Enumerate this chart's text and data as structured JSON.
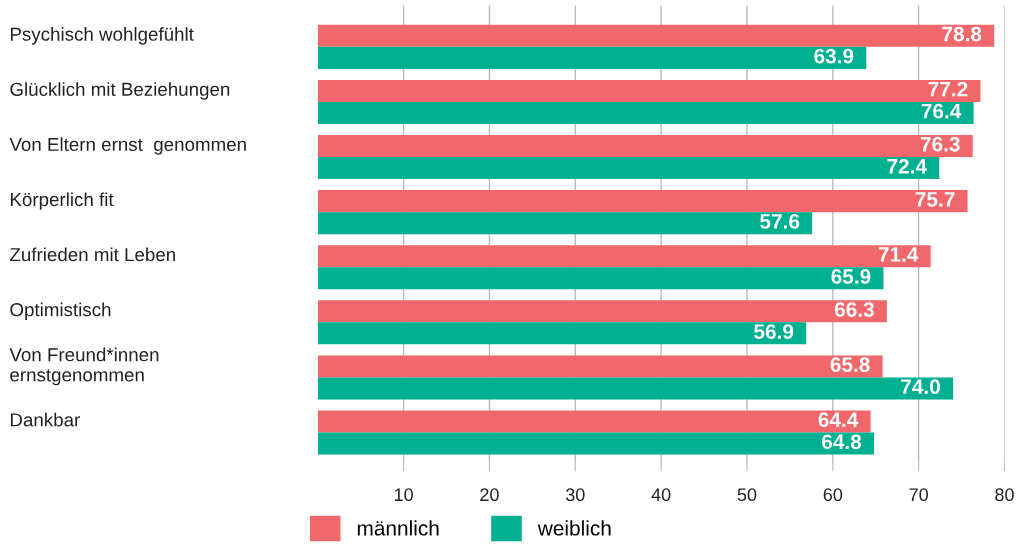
{
  "chart_data": {
    "type": "bar",
    "orientation": "horizontal",
    "categories": [
      "Psychisch wohlgefühlt",
      "Glücklich mit Beziehungen",
      "Von Eltern ernst  genommen",
      "Körperlich fit",
      "Zufrieden mit Leben",
      "Optimistisch",
      "Von Freund*innen\nernstgenommen",
      "Dankbar"
    ],
    "series": [
      {
        "name": "männlich",
        "color": "#f0686b",
        "values": [
          78.8,
          77.2,
          76.3,
          75.7,
          71.4,
          66.3,
          65.8,
          64.4
        ],
        "value_labels": [
          "78.8",
          "77.2",
          "76.3",
          "75.7",
          "71.4",
          "66.3",
          "65.8",
          "64.4"
        ]
      },
      {
        "name": "weiblich",
        "color": "#00b091",
        "values": [
          63.9,
          76.4,
          72.4,
          57.6,
          65.9,
          56.9,
          74.0,
          64.8
        ],
        "value_labels": [
          "63.9",
          "76.4",
          "72.4",
          "57.6",
          "65.9",
          "56.9",
          "74.0",
          "64.8"
        ]
      }
    ],
    "xlim": [
      0,
      80
    ],
    "xticks": [
      10,
      20,
      30,
      40,
      50,
      60,
      70,
      80
    ],
    "grid": "x",
    "legend": "bottom"
  }
}
